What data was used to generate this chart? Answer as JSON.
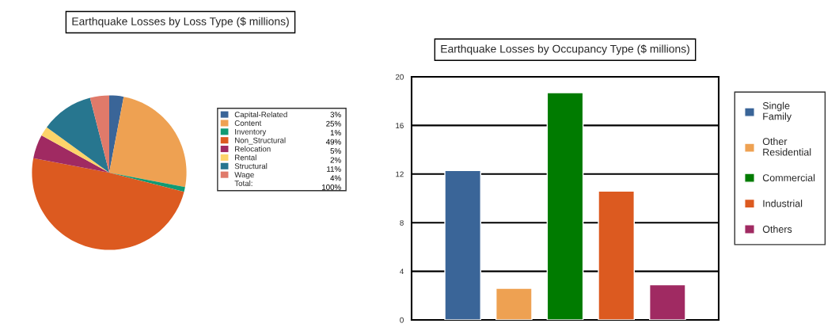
{
  "chart_data": [
    {
      "type": "pie",
      "title": "Earthquake Losses by Loss Type ($ millions)",
      "categories": [
        "Capital-Related",
        "Content",
        "Inventory",
        "Non_Structural",
        "Relocation",
        "Rental",
        "Structural",
        "Wage"
      ],
      "values": [
        3,
        25,
        1,
        49,
        5,
        2,
        11,
        4
      ],
      "value_labels": [
        "3%",
        "25%",
        "1%",
        "49%",
        "5%",
        "2%",
        "11%",
        "4%"
      ],
      "colors": [
        "#3a6598",
        "#eea152",
        "#0f9a73",
        "#dc5a20",
        "#a02a62",
        "#fdd46a",
        "#27768f",
        "#e07a6a"
      ],
      "annotations": [
        "Total:",
        "100%"
      ],
      "legend": "right"
    },
    {
      "type": "bar",
      "title": "Earthquake Losses by Occupancy Type ($ millions)",
      "categories": [
        null,
        null,
        null,
        null,
        null
      ],
      "series": [
        {
          "name": "Single Family",
          "color": "#3a6598",
          "values": [
            12.3,
            null,
            null,
            null,
            null
          ]
        },
        {
          "name": "Other Residential",
          "color": "#eea152",
          "values": [
            null,
            2.6,
            null,
            null,
            null
          ]
        },
        {
          "name": "Commercial",
          "color": "#007b00",
          "values": [
            null,
            null,
            18.7,
            null,
            null
          ]
        },
        {
          "name": "Industrial",
          "color": "#dc5a20",
          "values": [
            null,
            null,
            null,
            10.6,
            null
          ]
        },
        {
          "name": "Others",
          "color": "#a02a62",
          "values": [
            null,
            null,
            null,
            null,
            2.9
          ]
        }
      ],
      "ylim": [
        0,
        20
      ],
      "yticks": [
        0,
        4,
        8,
        12,
        16,
        20
      ],
      "grid": "y",
      "legend": "right"
    }
  ]
}
